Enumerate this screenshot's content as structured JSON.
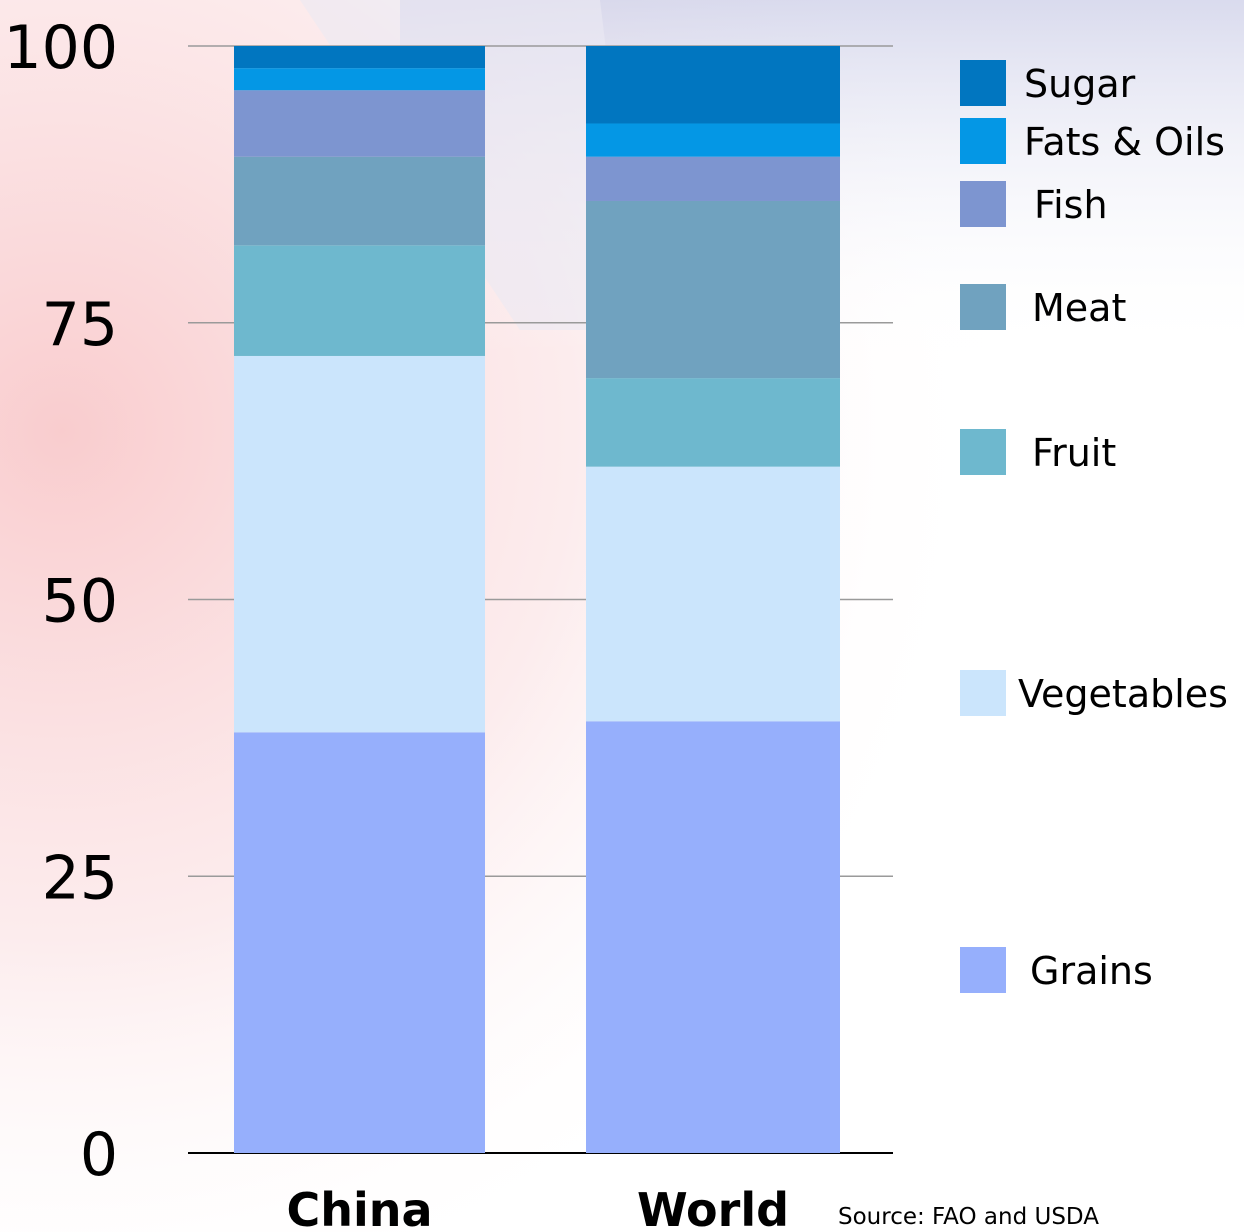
{
  "chart_data": {
    "type": "bar",
    "stacked": true,
    "categories": [
      "China",
      "World"
    ],
    "ylim": [
      0,
      100
    ],
    "yticks": [
      "0",
      "25",
      "50",
      "75",
      "100"
    ],
    "grid": true,
    "legend_position": "right",
    "series": [
      {
        "name": "Grains",
        "color": "#96AFFC",
        "values": [
          38.0,
          39.0
        ]
      },
      {
        "name": "Vegetables",
        "color": "#CBE5FC",
        "values": [
          34.0,
          23.0
        ]
      },
      {
        "name": "Fruit",
        "color": "#6EB8CE",
        "values": [
          10.0,
          8.0
        ]
      },
      {
        "name": "Meat",
        "color": "#70A2BF",
        "values": [
          8.0,
          16.0
        ]
      },
      {
        "name": "Fish",
        "color": "#7D95D0",
        "values": [
          6.0,
          4.0
        ]
      },
      {
        "name": "Fats & Oils",
        "color": "#0497E5",
        "values": [
          2.0,
          3.0
        ]
      },
      {
        "name": "Sugar",
        "color": "#0176C0",
        "values": [
          2.0,
          7.0
        ]
      }
    ]
  },
  "source_note": "Source:  FAO and USDA"
}
